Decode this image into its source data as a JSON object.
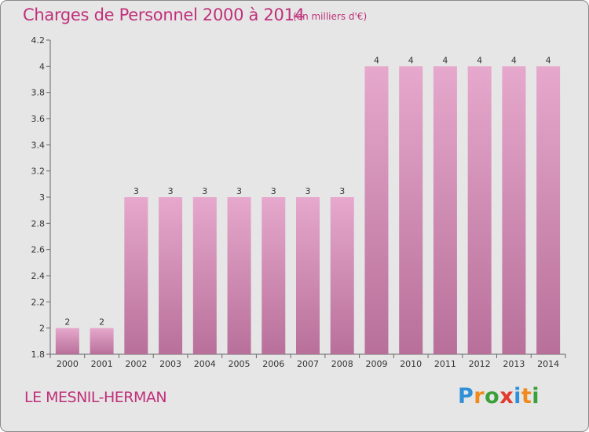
{
  "header": {
    "title": "Charges de Personnel 2000 à 2014",
    "subtitle": "(en milliers d'€)"
  },
  "footer": {
    "commune": "LE MESNIL-HERMAN",
    "logo_text": "Proxiti",
    "logo_letters": [
      {
        "ch": "P",
        "color": "#2f8fd8"
      },
      {
        "ch": "r",
        "color": "#f08a1c"
      },
      {
        "ch": "o",
        "color": "#3aa03a"
      },
      {
        "ch": "x",
        "color": "#e23b2e"
      },
      {
        "ch": "i",
        "color": "#2f8fd8"
      },
      {
        "ch": "t",
        "color": "#f08a1c"
      },
      {
        "ch": "i",
        "color": "#3aa03a"
      }
    ]
  },
  "colors": {
    "text_accent": "#c0307a",
    "bar_top": "#e6a8cc",
    "bar_bottom": "#b8709a",
    "plot_background": "#e6e6e6"
  },
  "chart_data": {
    "type": "bar",
    "categories": [
      "2000",
      "2001",
      "2002",
      "2003",
      "2004",
      "2005",
      "2006",
      "2007",
      "2008",
      "2009",
      "2010",
      "2011",
      "2012",
      "2013",
      "2014"
    ],
    "values": [
      2,
      2,
      3,
      3,
      3,
      3,
      3,
      3,
      3,
      4,
      4,
      4,
      4,
      4,
      4
    ],
    "data_labels": [
      "2",
      "2",
      "3",
      "3",
      "3",
      "3",
      "3",
      "3",
      "3",
      "4",
      "4",
      "4",
      "4",
      "4",
      "4"
    ],
    "ylim": [
      1.8,
      4.2
    ],
    "yticks": [
      1.8,
      2,
      2.2,
      2.4,
      2.6,
      2.8,
      3,
      3.2,
      3.4,
      3.6,
      3.8,
      4,
      4.2
    ],
    "ytick_labels": [
      "1.8",
      "2",
      "2.2",
      "2.4",
      "2.6",
      "2.8",
      "3",
      "3.2",
      "3.4",
      "3.6",
      "3.8",
      "4",
      "4.2"
    ],
    "xlabel": "",
    "ylabel": "",
    "grid": false
  }
}
